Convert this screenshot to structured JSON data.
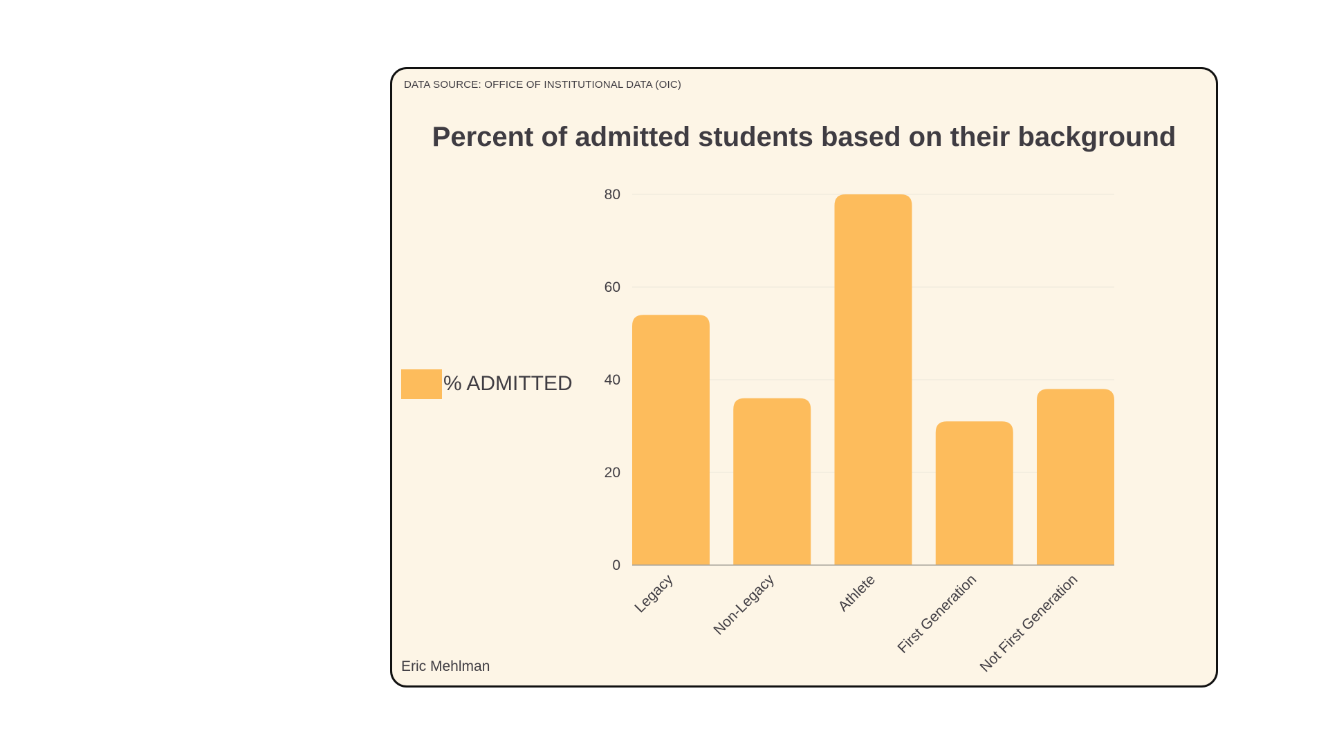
{
  "source_note": "DATA SOURCE: OFFICE OF INSTITUTIONAL DATA (OIC)",
  "author": "Eric Mehlman",
  "colors": {
    "card_background": "#fdf5e6",
    "card_border": "#111111",
    "bar": "#fdbc5c",
    "text": "#3f3c42",
    "grid": "#ece6da",
    "axis": "#a8a39b"
  },
  "chart_data": {
    "type": "bar",
    "title": "Percent of admitted students based on their background",
    "categories": [
      "Legacy",
      "Non-Legacy",
      "Athlete",
      "First Generation",
      "Not First Generation"
    ],
    "series": [
      {
        "name": "% ADMITTED",
        "values": [
          54,
          36,
          80,
          31,
          38
        ]
      }
    ],
    "ylim": [
      0,
      80
    ],
    "yticks": [
      "0",
      "20",
      "40",
      "60",
      "80"
    ],
    "grid": true,
    "legend_position": "left"
  }
}
